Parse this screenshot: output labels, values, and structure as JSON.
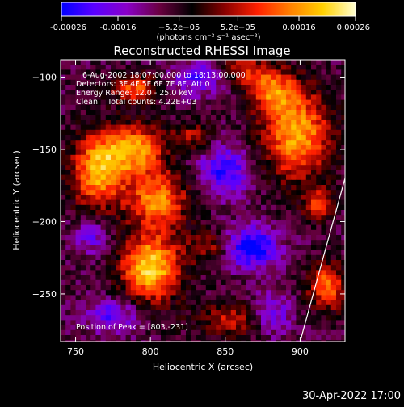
{
  "chart_data": {
    "type": "heatmap",
    "title": "Reconstructed RHESSI Image",
    "xlabel": "Heliocentric X (arcsec)",
    "ylabel": "Heliocentric Y (arcsec)",
    "xlim": [
      740,
      930
    ],
    "ylim": [
      -283,
      -88
    ],
    "x_ticks": [
      750,
      800,
      850,
      900
    ],
    "y_ticks": [
      -100,
      -150,
      -200,
      -250
    ],
    "colorbar": {
      "min": -0.00026,
      "max": 0.00026,
      "tick_values": [
        -0.00026,
        -0.00016,
        -5.2e-05,
        5.2e-05,
        0.00016,
        0.00026
      ],
      "tick_labels": [
        "-0.00026",
        "-0.00016",
        "−5.2e−05",
        "5.2e−05",
        "0.00016",
        "0.00026"
      ],
      "unit_label": "(photons cm⁻² s⁻¹ asec⁻²)",
      "colormap_stops": [
        "#0000ff",
        "#5a00ff",
        "#8a00c8",
        "#6a0040",
        "#000000",
        "#8a0000",
        "#ff2000",
        "#ff8000",
        "#ffd000",
        "#ffffd0"
      ]
    },
    "annotations": [
      "6-Aug-2002 18:07:00.000 to 18:13:00.000",
      "Detectors: 3F 4F 5F 6F 7F 8F, Att 0",
      "Energy Range: 12.0 - 25.0 keV",
      "Clean    Total counts: 4.22E+03",
      "Position of Peak = [803,-231]"
    ],
    "peak": {
      "x": 803,
      "y": -231
    },
    "limb_segment": [
      [
        900,
        -283
      ],
      [
        930,
        -170
      ]
    ],
    "bright_sources": [
      {
        "x": 765,
        "y": -165,
        "sx": 13,
        "sy": 18,
        "amp": 1.1
      },
      {
        "x": 790,
        "y": -150,
        "sx": 14,
        "sy": 12,
        "amp": 1.0
      },
      {
        "x": 805,
        "y": -185,
        "sx": 14,
        "sy": 14,
        "amp": 1.0
      },
      {
        "x": 800,
        "y": -232,
        "sx": 14,
        "sy": 16,
        "amp": 1.3
      },
      {
        "x": 790,
        "y": -108,
        "sx": 12,
        "sy": 7,
        "amp": 0.8
      },
      {
        "x": 860,
        "y": -96,
        "sx": 14,
        "sy": 8,
        "amp": 0.7
      },
      {
        "x": 898,
        "y": -140,
        "sx": 16,
        "sy": 22,
        "amp": 1.1
      },
      {
        "x": 882,
        "y": -110,
        "sx": 11,
        "sy": 10,
        "amp": 0.8
      },
      {
        "x": 855,
        "y": -268,
        "sx": 18,
        "sy": 9,
        "amp": 0.6
      },
      {
        "x": 918,
        "y": -245,
        "sx": 9,
        "sy": 12,
        "amp": 0.9
      },
      {
        "x": 912,
        "y": -188,
        "sx": 7,
        "sy": 8,
        "amp": 0.7
      },
      {
        "x": 828,
        "y": -140,
        "sx": 9,
        "sy": 7,
        "amp": 0.5
      },
      {
        "x": 838,
        "y": -218,
        "sx": 10,
        "sy": 8,
        "amp": 0.5
      }
    ],
    "dim_sources": [
      {
        "x": 868,
        "y": -218,
        "sx": 12,
        "sy": 10,
        "amp": 0.9
      },
      {
        "x": 850,
        "y": -165,
        "sx": 12,
        "sy": 12,
        "amp": 0.7
      },
      {
        "x": 775,
        "y": -265,
        "sx": 12,
        "sy": 8,
        "amp": 0.6
      },
      {
        "x": 835,
        "y": -100,
        "sx": 14,
        "sy": 8,
        "amp": 0.7
      },
      {
        "x": 880,
        "y": -265,
        "sx": 10,
        "sy": 10,
        "amp": 0.6
      },
      {
        "x": 760,
        "y": -210,
        "sx": 8,
        "sy": 8,
        "amp": 0.5
      }
    ]
  },
  "footer": {
    "timestamp": "30-Apr-2022 17:00"
  }
}
